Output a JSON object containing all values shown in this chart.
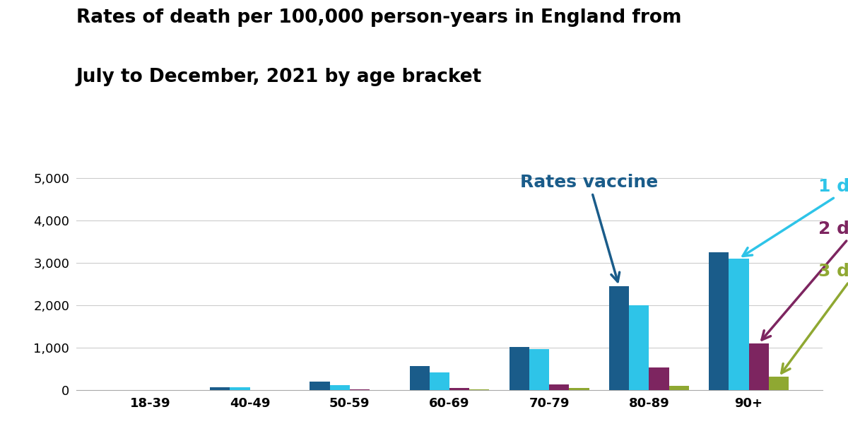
{
  "title_line1": "Rates of death per 100,000 person-years in England from",
  "title_line2": "July to December, 2021 by age bracket",
  "categories": [
    "18-39",
    "40-49",
    "50-59",
    "60-69",
    "70-79",
    "80-89",
    "90+"
  ],
  "no_vaccine": [
    5,
    75,
    200,
    560,
    1010,
    2450,
    3250
  ],
  "one_dose": [
    4,
    68,
    120,
    420,
    960,
    2000,
    3100
  ],
  "two_doses": [
    1,
    5,
    12,
    45,
    140,
    530,
    1100
  ],
  "three_doses": [
    1,
    2,
    5,
    15,
    55,
    100,
    310
  ],
  "color_no_vaccine": "#1a5c8a",
  "color_one_dose": "#2ec4e8",
  "color_two_doses": "#7d2560",
  "color_three_doses": "#8fa832",
  "background": "#ffffff",
  "ylim": [
    0,
    5500
  ],
  "yticks": [
    0,
    1000,
    2000,
    3000,
    4000,
    5000
  ],
  "title_fontsize": 19,
  "tick_fontsize": 13,
  "annot_fontsize": 18
}
